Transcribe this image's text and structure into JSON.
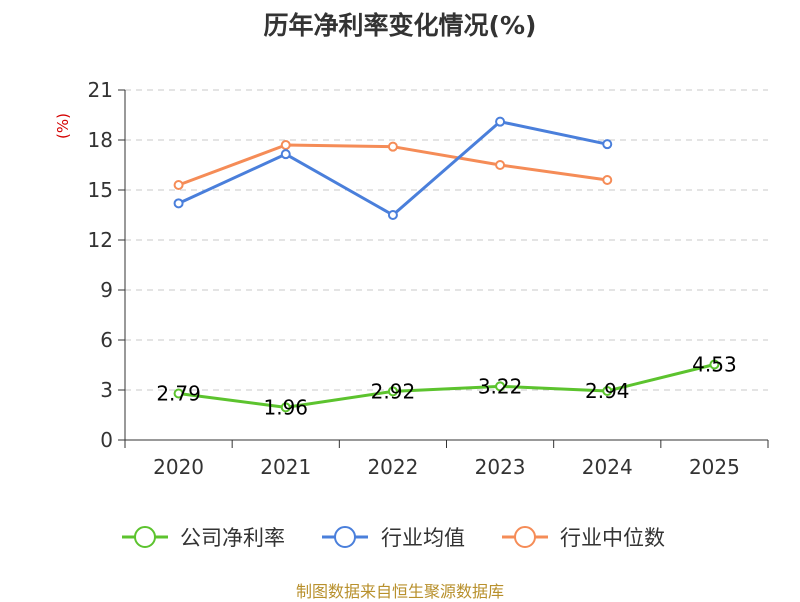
{
  "title": "历年净利率变化情况(%)",
  "source": "制图数据来自恒生聚源数据库",
  "chart_data": {
    "type": "line",
    "title": "历年净利率变化情况(%)",
    "ylabel": "(%)",
    "x": [
      "2020",
      "2021",
      "2022",
      "2023",
      "2024",
      "2025"
    ],
    "ylim": [
      0,
      21
    ],
    "yticks": [
      0,
      3,
      6,
      9,
      12,
      15,
      18,
      21
    ],
    "grid": true,
    "legend": "bottom",
    "series": [
      {
        "name": "公司净利率",
        "color": "#5cc32e",
        "values": [
          2.79,
          1.96,
          2.92,
          3.22,
          2.94,
          4.53
        ],
        "labels": [
          "2.79",
          "1.96",
          "2.92",
          "3.22",
          "2.94",
          "4.53"
        ]
      },
      {
        "name": "行业均值",
        "color": "#4a7fdb",
        "values": [
          14.2,
          17.15,
          13.5,
          19.1,
          17.75,
          null
        ]
      },
      {
        "name": "行业中位数",
        "color": "#f58c57",
        "values": [
          15.3,
          17.7,
          17.6,
          16.5,
          15.6,
          null
        ]
      }
    ]
  }
}
